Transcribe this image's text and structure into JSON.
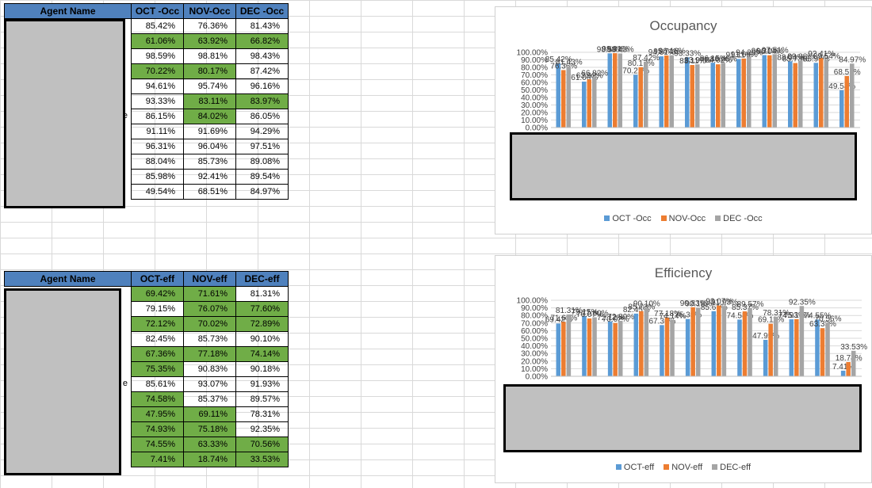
{
  "colors": {
    "header": "#4f81bd",
    "green": "#70ad47",
    "oct": "#5b9bd5",
    "nov": "#ed7d31",
    "dec": "#a5a5a5"
  },
  "occ_table": {
    "headers": [
      "Agent Name",
      "OCT -Occ",
      "NOV-Occ",
      "DEC -Occ"
    ],
    "rows": [
      {
        "a": "85.42%",
        "b": "76.36%",
        "c": "81.43%",
        "ga": false,
        "gb": false,
        "gc": false
      },
      {
        "a": "61.06%",
        "b": "63.92%",
        "c": "66.82%",
        "ga": true,
        "gb": true,
        "gc": true
      },
      {
        "a": "98.59%",
        "b": "98.81%",
        "c": "98.43%",
        "ga": false,
        "gb": false,
        "gc": false
      },
      {
        "a": "70.22%",
        "b": "80.17%",
        "c": "87.42%",
        "ga": true,
        "gb": true,
        "gc": false
      },
      {
        "a": "94.61%",
        "b": "95.74%",
        "c": "96.16%",
        "ga": false,
        "gb": false,
        "gc": false
      },
      {
        "a": "93.33%",
        "b": "83.11%",
        "c": "83.97%",
        "ga": false,
        "gb": true,
        "gc": true
      },
      {
        "a": "86.15%",
        "b": "84.02%",
        "c": "86.05%",
        "ga": false,
        "gb": true,
        "gc": false
      },
      {
        "a": "91.11%",
        "b": "91.69%",
        "c": "94.29%",
        "ga": false,
        "gb": false,
        "gc": false
      },
      {
        "a": "96.31%",
        "b": "96.04%",
        "c": "97.51%",
        "ga": false,
        "gb": false,
        "gc": false
      },
      {
        "a": "88.04%",
        "b": "85.73%",
        "c": "89.08%",
        "ga": false,
        "gb": false,
        "gc": false
      },
      {
        "a": "85.98%",
        "b": "92.41%",
        "c": "89.54%",
        "ga": false,
        "gb": false,
        "gc": false
      },
      {
        "a": "49.54%",
        "b": "68.51%",
        "c": "84.97%",
        "ga": false,
        "gb": false,
        "gc": false
      }
    ],
    "name_fragment": "e"
  },
  "eff_table": {
    "headers": [
      "Agent Name",
      "OCT-eff",
      "NOV-eff",
      "DEC-eff"
    ],
    "rows": [
      {
        "a": "69.42%",
        "b": "71.61%",
        "c": "81.31%",
        "ga": true,
        "gb": true,
        "gc": false
      },
      {
        "a": "79.15%",
        "b": "76.07%",
        "c": "77.60%",
        "ga": false,
        "gb": true,
        "gc": true
      },
      {
        "a": "72.12%",
        "b": "70.02%",
        "c": "72.89%",
        "ga": true,
        "gb": true,
        "gc": true
      },
      {
        "a": "82.45%",
        "b": "85.73%",
        "c": "90.10%",
        "ga": false,
        "gb": false,
        "gc": false
      },
      {
        "a": "67.36%",
        "b": "77.18%",
        "c": "74.14%",
        "ga": true,
        "gb": true,
        "gc": true
      },
      {
        "a": "75.35%",
        "b": "90.83%",
        "c": "90.18%",
        "ga": true,
        "gb": false,
        "gc": false
      },
      {
        "a": "85.61%",
        "b": "93.07%",
        "c": "91.93%",
        "ga": false,
        "gb": false,
        "gc": false
      },
      {
        "a": "74.58%",
        "b": "85.37%",
        "c": "89.57%",
        "ga": true,
        "gb": false,
        "gc": false
      },
      {
        "a": "47.95%",
        "b": "69.11%",
        "c": "78.31%",
        "ga": true,
        "gb": true,
        "gc": false
      },
      {
        "a": "74.93%",
        "b": "75.18%",
        "c": "92.35%",
        "ga": true,
        "gb": true,
        "gc": false
      },
      {
        "a": "74.55%",
        "b": "63.33%",
        "c": "70.56%",
        "ga": true,
        "gb": true,
        "gc": true
      },
      {
        "a": "7.41%",
        "b": "18.74%",
        "c": "33.53%",
        "ga": true,
        "gb": true,
        "gc": true
      }
    ],
    "name_fragment": "e"
  },
  "chart_data": [
    {
      "type": "bar",
      "title": "Occupancy",
      "yticks": [
        "0.00%",
        "10.00%",
        "20.00%",
        "30.00%",
        "40.00%",
        "50.00%",
        "60.00%",
        "70.00%",
        "80.00%",
        "90.00%",
        "100.00%"
      ],
      "ylim": [
        0,
        100
      ],
      "series": [
        {
          "name": "OCT -Occ",
          "values": [
            85.42,
            61.06,
            98.59,
            70.22,
            94.61,
            93.33,
            86.15,
            91.11,
            96.31,
            88.04,
            85.98,
            49.54
          ]
        },
        {
          "name": "NOV-Occ",
          "values": [
            76.36,
            63.92,
            98.81,
            80.17,
            95.74,
            83.11,
            84.02,
            91.69,
            96.04,
            85.73,
            92.41,
            68.51
          ]
        },
        {
          "name": "DEC -Occ",
          "values": [
            81.43,
            66.82,
            98.43,
            87.42,
            96.16,
            83.97,
            86.05,
            94.29,
            97.51,
            89.08,
            89.54,
            84.97
          ]
        }
      ],
      "legend": "bottom"
    },
    {
      "type": "bar",
      "title": "Efficiency",
      "yticks": [
        "0.00%",
        "10.00%",
        "20.00%",
        "30.00%",
        "40.00%",
        "50.00%",
        "60.00%",
        "70.00%",
        "80.00%",
        "90.00%",
        "100.00%"
      ],
      "ylim": [
        0,
        100
      ],
      "series": [
        {
          "name": "OCT-eff",
          "values": [
            69.42,
            79.15,
            72.12,
            82.45,
            67.36,
            75.35,
            85.61,
            74.58,
            47.95,
            74.93,
            74.55,
            7.41
          ]
        },
        {
          "name": "NOV-eff",
          "values": [
            71.61,
            76.07,
            70.02,
            85.73,
            77.18,
            90.83,
            93.07,
            85.37,
            69.11,
            75.18,
            63.33,
            18.74
          ]
        },
        {
          "name": "DEC-eff",
          "values": [
            81.31,
            77.6,
            72.89,
            90.1,
            74.14,
            90.18,
            91.93,
            89.57,
            78.31,
            92.35,
            70.56,
            33.53
          ]
        }
      ],
      "legend": "bottom"
    }
  ]
}
